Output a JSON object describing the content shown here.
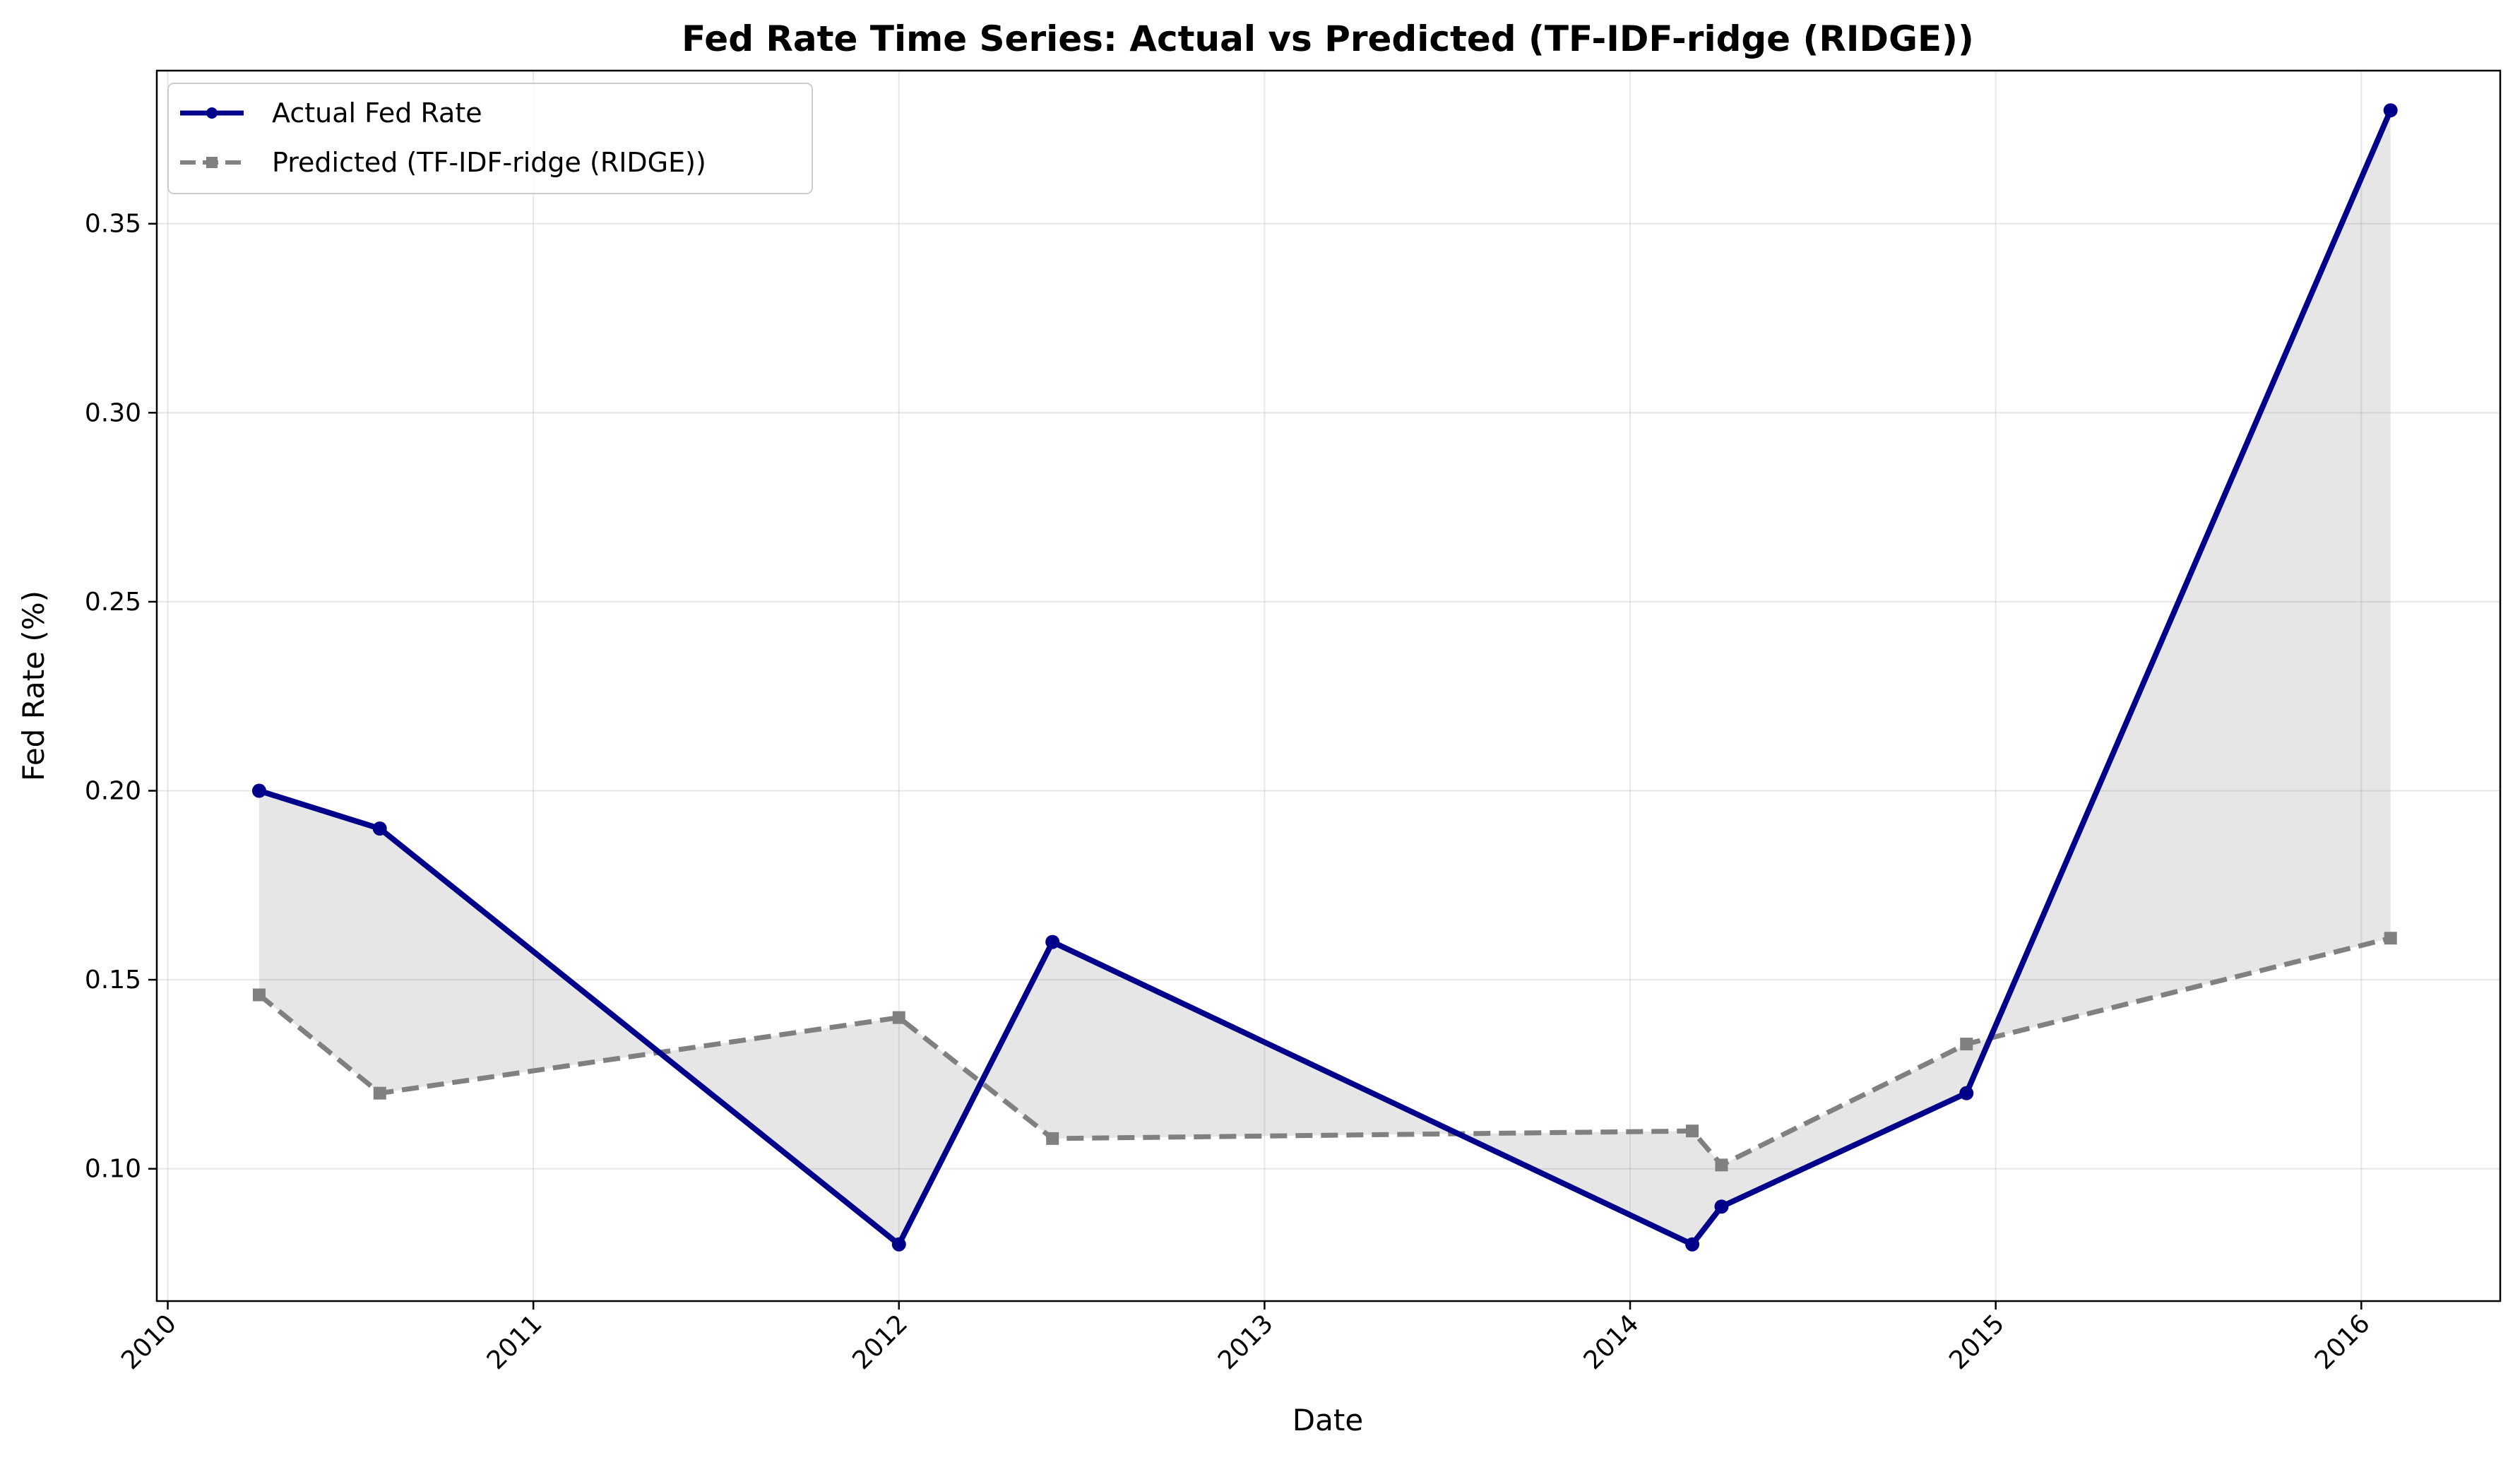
{
  "chart_data": {
    "type": "line",
    "title": "Fed Rate Time Series: Actual vs Predicted (TF-IDF-ridge (RIDGE))",
    "xlabel": "Date",
    "ylabel": "Fed Rate (%)",
    "x_ticks": [
      "2010",
      "2011",
      "2012",
      "2013",
      "2014",
      "2015",
      "2016"
    ],
    "y_ticks": [
      "0.10",
      "0.15",
      "0.20",
      "0.25",
      "0.30",
      "0.35"
    ],
    "xlim": [
      2009.97,
      2016.38
    ],
    "ylim": [
      0.065,
      0.3905
    ],
    "grid": true,
    "legend_position": "upper left",
    "fill_between_series": true,
    "series": [
      {
        "name": "Actual Fed Rate",
        "color": "#00008b",
        "style": "solid",
        "marker": "circle",
        "x": [
          2010.25,
          2010.58,
          2012.0,
          2012.42,
          2014.17,
          2014.25,
          2014.92,
          2016.08
        ],
        "y": [
          0.2,
          0.19,
          0.08,
          0.16,
          0.08,
          0.09,
          0.12,
          0.38
        ]
      },
      {
        "name": "Predicted (TF-IDF-ridge (RIDGE))",
        "color": "#808080",
        "style": "dashed",
        "marker": "square",
        "x": [
          2010.25,
          2010.58,
          2012.0,
          2012.42,
          2014.17,
          2014.25,
          2014.92,
          2016.08
        ],
        "y": [
          0.146,
          0.12,
          0.14,
          0.108,
          0.11,
          0.101,
          0.133,
          0.161
        ]
      }
    ]
  }
}
